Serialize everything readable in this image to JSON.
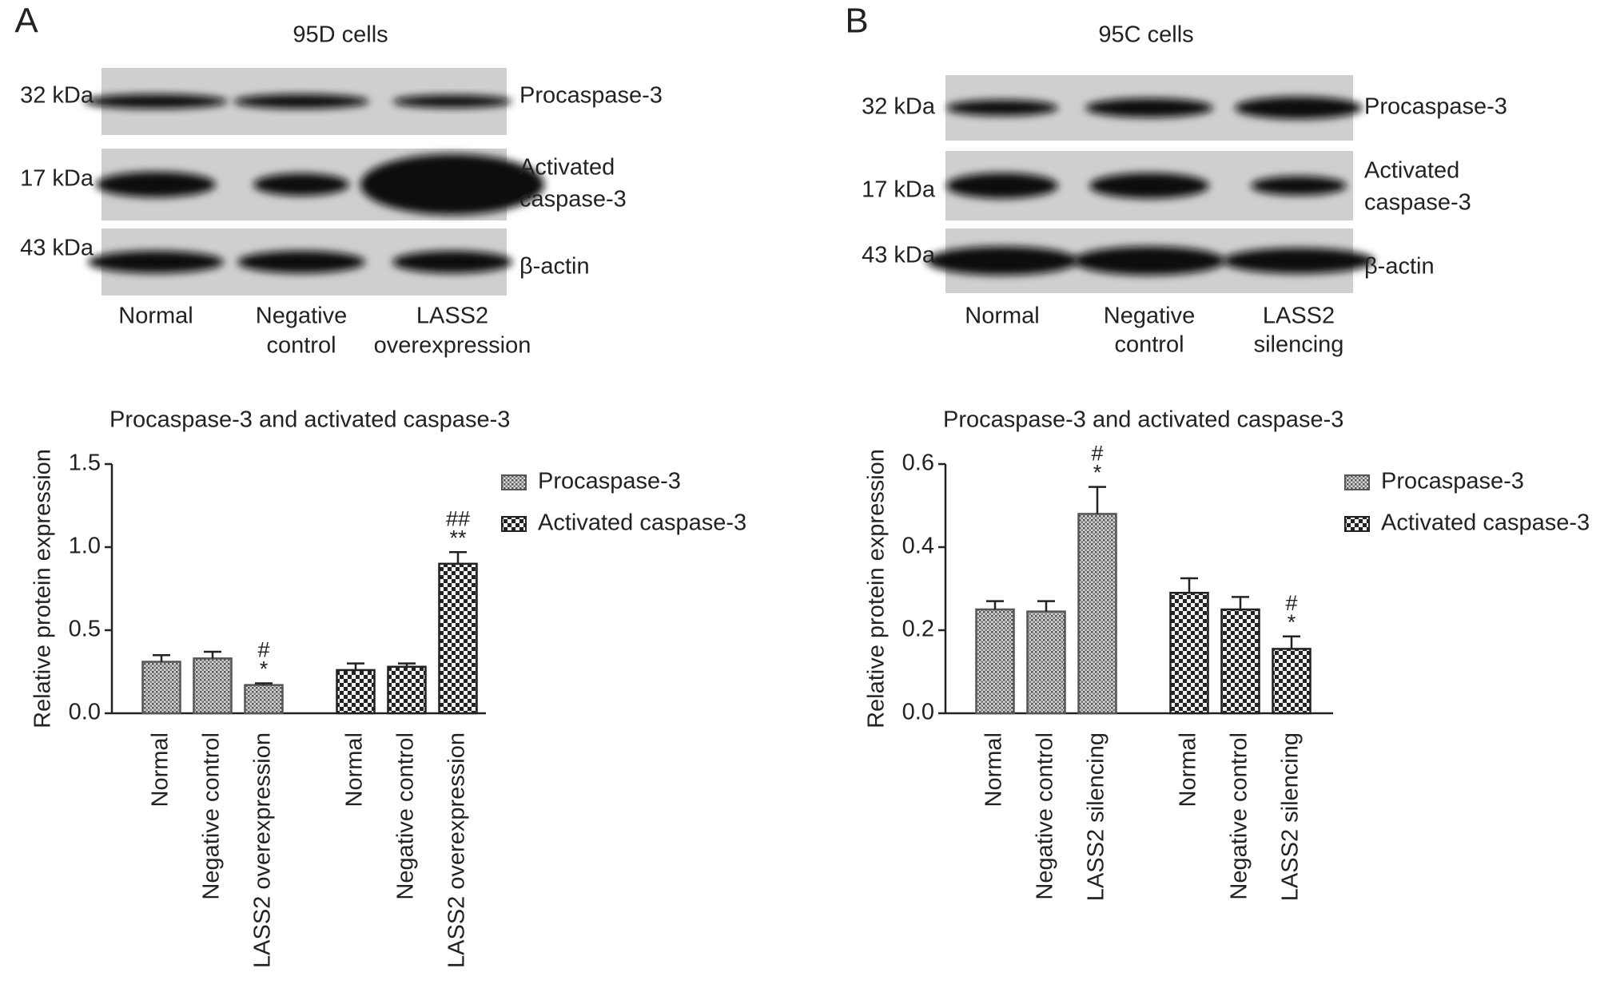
{
  "blots": [
    {
      "panel": "A",
      "title": "95D cells",
      "rows": [
        {
          "size": "32 kDa",
          "label": [
            "Procaspase-3"
          ]
        },
        {
          "size": "17 kDa",
          "label": [
            "Activated",
            "caspase-3"
          ]
        },
        {
          "size": "43 kDa",
          "label": [
            "β-actin"
          ]
        }
      ],
      "lanes": [
        [
          "Normal"
        ],
        [
          "Negative",
          "control"
        ],
        [
          "LASS2",
          "overexpression"
        ]
      ]
    },
    {
      "panel": "B",
      "title": "95C cells",
      "rows": [
        {
          "size": "32 kDa",
          "label": [
            "Procaspase-3"
          ]
        },
        {
          "size": "17 kDa",
          "label": [
            "Activated",
            "caspase-3"
          ]
        },
        {
          "size": "43 kDa",
          "label": [
            "β-actin"
          ]
        }
      ],
      "lanes": [
        [
          "Normal"
        ],
        [
          "Negative",
          "control"
        ],
        [
          "LASS2",
          "silencing"
        ]
      ]
    }
  ],
  "chart_data": [
    {
      "type": "bar",
      "title": "Procaspase-3 and activated caspase-3",
      "y_label": "Relative protein expression",
      "categories": [
        "Normal",
        "Negative control",
        "LASS2 overexpression"
      ],
      "series": [
        {
          "name": "Procaspase-3",
          "color": "#555555",
          "pattern": "fine",
          "values": [
            0.31,
            0.33,
            0.17
          ],
          "errors": [
            0.04,
            0.04,
            0.01
          ],
          "annotations": [
            null,
            null,
            [
              "#",
              "*"
            ]
          ]
        },
        {
          "name": "Activated caspase-3",
          "color": "#222222",
          "pattern": "checker",
          "values": [
            0.26,
            0.28,
            0.9
          ],
          "errors": [
            0.04,
            0.02,
            0.07
          ],
          "annotations": [
            null,
            null,
            [
              "##",
              "**"
            ]
          ]
        }
      ],
      "ylim": [
        0,
        1.5
      ],
      "yticks": [
        {
          "value": 0,
          "label": "0.0"
        },
        0.5,
        {
          "value": 1,
          "label": "1.0"
        },
        1.5
      ]
    },
    {
      "type": "bar",
      "title": "Procaspase-3 and activated caspase-3",
      "y_label": "Relative protein expression",
      "categories": [
        "Normal",
        "Negative control",
        "LASS2 silencing"
      ],
      "series": [
        {
          "name": "Procaspase-3",
          "color": "#555555",
          "pattern": "fine",
          "values": [
            0.25,
            0.245,
            0.48
          ],
          "errors": [
            0.02,
            0.025,
            0.065
          ],
          "annotations": [
            null,
            null,
            [
              "#",
              "*"
            ]
          ]
        },
        {
          "name": "Activated caspase-3",
          "color": "#222222",
          "pattern": "checker",
          "values": [
            0.29,
            0.25,
            0.155
          ],
          "errors": [
            0.035,
            0.03,
            0.03
          ],
          "annotations": [
            null,
            null,
            [
              "#",
              "*"
            ]
          ]
        }
      ],
      "ylim": [
        0,
        0.6
      ],
      "yticks": [
        {
          "value": 0,
          "label": "0.0"
        },
        0.2,
        0.4,
        0.6
      ]
    }
  ]
}
